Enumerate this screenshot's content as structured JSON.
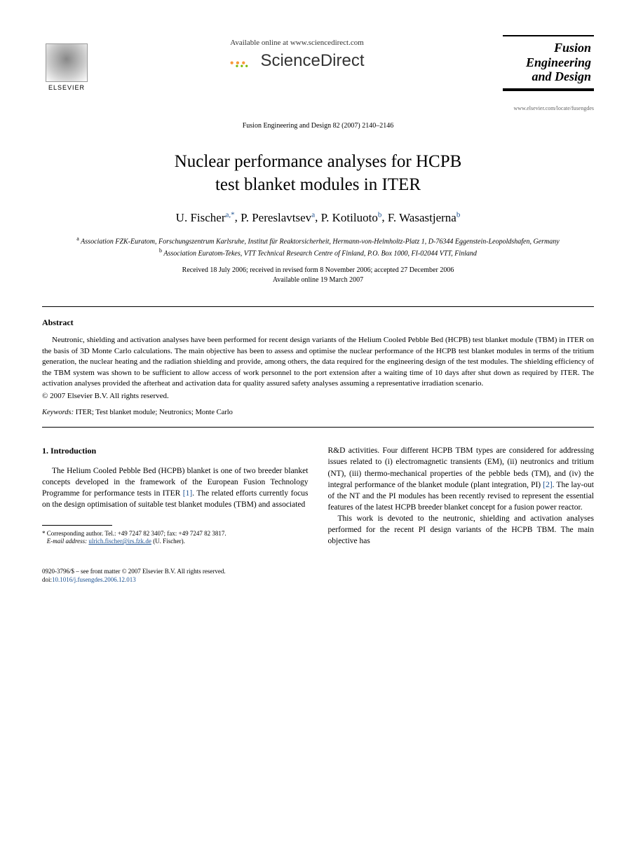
{
  "header": {
    "publisher": "ELSEVIER",
    "available_text": "Available online at www.sciencedirect.com",
    "platform": "ScienceDirect",
    "journal_title_line1": "Fusion",
    "journal_title_line2": "Engineering",
    "journal_title_line3": "and Design",
    "journal_url": "www.elsevier.com/locate/fusengdes",
    "citation": "Fusion Engineering and Design 82 (2007) 2140–2146"
  },
  "article": {
    "title_line1": "Nuclear performance analyses for HCPB",
    "title_line2": "test blanket modules in ITER",
    "authors": [
      {
        "name": "U. Fischer",
        "marks": "a,*"
      },
      {
        "name": "P. Pereslavtsev",
        "marks": "a"
      },
      {
        "name": "P. Kotiluoto",
        "marks": "b"
      },
      {
        "name": "F. Wasastjerna",
        "marks": "b"
      }
    ],
    "affiliations": {
      "a": "Association FZK-Euratom, Forschungszentrum Karlsruhe, Institut für Reaktorsicherheit, Hermann-von-Helmholtz-Platz 1, D-76344 Eggenstein-Leopoldshafen, Germany",
      "b": "Association Euratom-Tekes, VTT Technical Research Centre of Finland, P.O. Box 1000, FI-02044 VTT, Finland"
    },
    "dates_line1": "Received 18 July 2006; received in revised form 8 November 2006; accepted 27 December 2006",
    "dates_line2": "Available online 19 March 2007"
  },
  "abstract": {
    "heading": "Abstract",
    "text": "Neutronic, shielding and activation analyses have been performed for recent design variants of the Helium Cooled Pebble Bed (HCPB) test blanket module (TBM) in ITER on the basis of 3D Monte Carlo calculations. The main objective has been to assess and optimise the nuclear performance of the HCPB test blanket modules in terms of the tritium generation, the nuclear heating and the radiation shielding and provide, among others, the data required for the engineering design of the test modules. The shielding efficiency of the TBM system was shown to be sufficient to allow access of work personnel to the port extension after a waiting time of 10 days after shut down as required by ITER. The activation analyses provided the afterheat and activation data for quality assured safety analyses assuming a representative irradiation scenario.",
    "copyright": "© 2007 Elsevier B.V. All rights reserved.",
    "keywords_label": "Keywords:",
    "keywords_text": " ITER; Test blanket module; Neutronics; Monte Carlo"
  },
  "body": {
    "section_heading": "1. Introduction",
    "col1_para1": "The Helium Cooled Pebble Bed (HCPB) blanket is one of two breeder blanket concepts developed in the framework of the European Fusion Technology Programme for performance tests in ITER ",
    "col1_ref1": "[1]",
    "col1_para1_cont": ". The related efforts currently focus on the design optimisation of suitable test blanket modules (TBM) and associated",
    "col2_para1": "R&D activities. Four different HCPB TBM types are considered for addressing issues related to (i) electromagnetic transients (EM), (ii) neutronics and tritium (NT), (iii) thermo-mechanical properties of the pebble beds (TM), and (iv) the integral performance of the blanket module (plant integration, PI) ",
    "col2_ref1": "[2]",
    "col2_para1_cont": ". The lay-out of the NT and the PI modules has been recently revised to represent the essential features of the latest HCPB breeder blanket concept for a fusion power reactor.",
    "col2_para2": "This work is devoted to the neutronic, shielding and activation analyses performed for the recent PI design variants of the HCPB TBM. The main objective has"
  },
  "footnote": {
    "corresponding": "* Corresponding author. Tel.: +49 7247 82 3407; fax: +49 7247 82 3817.",
    "email_label": "E-mail address:",
    "email": "ulrich.fischer@irs.fzk.de",
    "email_author": " (U. Fischer)."
  },
  "footer": {
    "issn_line": "0920-3796/$ – see front matter © 2007 Elsevier B.V. All rights reserved.",
    "doi_label": "doi:",
    "doi": "10.1016/j.fusengdes.2006.12.013"
  },
  "colors": {
    "link": "#1a4f8f",
    "text": "#000000",
    "background": "#ffffff"
  }
}
